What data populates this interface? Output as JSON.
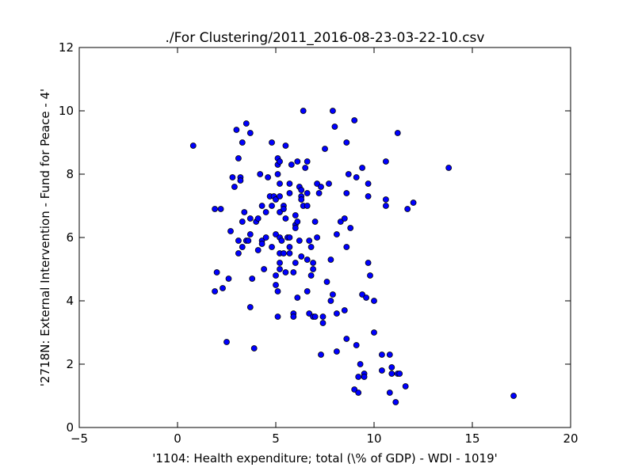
{
  "chart_data": {
    "type": "scatter",
    "title": "./For Clustering/2011_2016-08-23-03-22-10.csv",
    "xlabel": "'1104: Health expenditure; total  (\\% of GDP) - WDI - 1019'",
    "ylabel": "'2718N: External Intervention - Fund for Peace - 4'",
    "xlim": [
      -5,
      20
    ],
    "ylim": [
      0,
      12
    ],
    "xticks": [
      -5,
      0,
      5,
      10,
      15,
      20
    ],
    "yticks": [
      0,
      2,
      4,
      6,
      8,
      10,
      12
    ],
    "grid": false,
    "marker_color": "#0000ff",
    "marker_edge": "#000000",
    "points": [
      [
        0.8,
        8.9
      ],
      [
        1.9,
        6.9
      ],
      [
        2.2,
        6.9
      ],
      [
        2.0,
        4.9
      ],
      [
        1.9,
        4.3
      ],
      [
        2.3,
        4.4
      ],
      [
        2.6,
        4.7
      ],
      [
        2.5,
        2.7
      ],
      [
        2.7,
        6.2
      ],
      [
        2.8,
        7.9
      ],
      [
        2.9,
        7.6
      ],
      [
        3.0,
        9.4
      ],
      [
        3.1,
        8.5
      ],
      [
        3.2,
        7.9
      ],
      [
        3.2,
        7.8
      ],
      [
        3.1,
        5.9
      ],
      [
        3.1,
        5.5
      ],
      [
        3.3,
        6.5
      ],
      [
        3.3,
        5.7
      ],
      [
        3.4,
        6.8
      ],
      [
        3.3,
        9.0
      ],
      [
        3.5,
        9.6
      ],
      [
        3.5,
        5.9
      ],
      [
        3.6,
        5.9
      ],
      [
        3.7,
        9.3
      ],
      [
        3.7,
        6.6
      ],
      [
        3.7,
        6.1
      ],
      [
        3.7,
        3.8
      ],
      [
        3.8,
        4.7
      ],
      [
        3.9,
        2.5
      ],
      [
        4.0,
        6.5
      ],
      [
        4.1,
        6.6
      ],
      [
        4.1,
        5.6
      ],
      [
        4.2,
        8.0
      ],
      [
        4.3,
        7.0
      ],
      [
        4.3,
        5.9
      ],
      [
        4.3,
        5.8
      ],
      [
        4.4,
        5.0
      ],
      [
        4.5,
        6.8
      ],
      [
        4.5,
        6.0
      ],
      [
        4.6,
        7.9
      ],
      [
        4.7,
        7.3
      ],
      [
        4.8,
        9.0
      ],
      [
        4.8,
        7.0
      ],
      [
        4.8,
        5.7
      ],
      [
        4.9,
        7.3
      ],
      [
        5.0,
        7.2
      ],
      [
        5.0,
        6.1
      ],
      [
        5.0,
        4.8
      ],
      [
        5.0,
        4.5
      ],
      [
        5.1,
        4.3
      ],
      [
        5.1,
        3.5
      ],
      [
        5.1,
        8.5
      ],
      [
        5.1,
        8.3
      ],
      [
        5.1,
        8.0
      ],
      [
        5.2,
        8.4
      ],
      [
        5.2,
        7.7
      ],
      [
        5.2,
        7.3
      ],
      [
        5.2,
        6.8
      ],
      [
        5.2,
        6.0
      ],
      [
        5.2,
        5.5
      ],
      [
        5.2,
        5.2
      ],
      [
        5.2,
        5.0
      ],
      [
        5.3,
        5.9
      ],
      [
        5.4,
        7.0
      ],
      [
        5.4,
        6.9
      ],
      [
        5.4,
        5.5
      ],
      [
        5.5,
        8.9
      ],
      [
        5.5,
        6.6
      ],
      [
        5.5,
        4.9
      ],
      [
        5.6,
        6.0
      ],
      [
        5.7,
        7.7
      ],
      [
        5.7,
        7.4
      ],
      [
        5.7,
        6.0
      ],
      [
        5.7,
        5.7
      ],
      [
        5.7,
        5.5
      ],
      [
        5.8,
        8.3
      ],
      [
        5.9,
        3.6
      ],
      [
        5.9,
        3.5
      ],
      [
        5.9,
        4.9
      ],
      [
        6.0,
        6.7
      ],
      [
        6.0,
        6.4
      ],
      [
        6.0,
        6.3
      ],
      [
        6.0,
        5.2
      ],
      [
        6.1,
        8.4
      ],
      [
        6.1,
        4.1
      ],
      [
        6.1,
        6.5
      ],
      [
        6.2,
        7.6
      ],
      [
        6.2,
        5.9
      ],
      [
        6.3,
        7.5
      ],
      [
        6.3,
        7.3
      ],
      [
        6.3,
        7.2
      ],
      [
        6.3,
        5.4
      ],
      [
        6.4,
        10.0
      ],
      [
        6.4,
        7.0
      ],
      [
        6.5,
        8.2
      ],
      [
        6.6,
        8.4
      ],
      [
        6.6,
        7.4
      ],
      [
        6.6,
        7.0
      ],
      [
        6.6,
        5.3
      ],
      [
        6.6,
        4.3
      ],
      [
        6.7,
        3.6
      ],
      [
        6.7,
        5.9
      ],
      [
        6.8,
        5.7
      ],
      [
        6.8,
        4.8
      ],
      [
        6.9,
        5.2
      ],
      [
        6.9,
        5.0
      ],
      [
        6.9,
        3.5
      ],
      [
        7.0,
        6.5
      ],
      [
        7.0,
        3.5
      ],
      [
        7.1,
        6.0
      ],
      [
        7.1,
        7.7
      ],
      [
        7.2,
        7.4
      ],
      [
        7.3,
        7.6
      ],
      [
        7.3,
        2.3
      ],
      [
        7.4,
        3.5
      ],
      [
        7.4,
        3.3
      ],
      [
        7.5,
        8.8
      ],
      [
        7.6,
        4.6
      ],
      [
        7.7,
        7.7
      ],
      [
        7.8,
        5.3
      ],
      [
        7.8,
        4.0
      ],
      [
        7.9,
        10.0
      ],
      [
        7.9,
        4.2
      ],
      [
        8.0,
        9.5
      ],
      [
        8.1,
        6.1
      ],
      [
        8.1,
        3.6
      ],
      [
        8.1,
        2.4
      ],
      [
        8.3,
        6.5
      ],
      [
        8.5,
        6.6
      ],
      [
        8.5,
        3.7
      ],
      [
        8.6,
        9.0
      ],
      [
        8.6,
        7.4
      ],
      [
        8.6,
        5.7
      ],
      [
        8.6,
        2.8
      ],
      [
        8.7,
        8.0
      ],
      [
        8.8,
        6.3
      ],
      [
        9.0,
        9.7
      ],
      [
        9.0,
        1.2
      ],
      [
        9.1,
        7.9
      ],
      [
        9.1,
        2.6
      ],
      [
        9.2,
        1.6
      ],
      [
        9.2,
        1.1
      ],
      [
        9.3,
        2.0
      ],
      [
        9.4,
        8.2
      ],
      [
        9.4,
        4.2
      ],
      [
        9.5,
        1.7
      ],
      [
        9.5,
        1.6
      ],
      [
        9.6,
        4.1
      ],
      [
        9.7,
        7.7
      ],
      [
        9.7,
        7.3
      ],
      [
        9.7,
        5.2
      ],
      [
        9.8,
        4.8
      ],
      [
        10.0,
        4.0
      ],
      [
        10.0,
        3.0
      ],
      [
        10.4,
        2.3
      ],
      [
        10.4,
        1.8
      ],
      [
        10.6,
        8.4
      ],
      [
        10.6,
        7.2
      ],
      [
        10.6,
        7.0
      ],
      [
        10.8,
        2.3
      ],
      [
        10.8,
        1.1
      ],
      [
        10.9,
        1.9
      ],
      [
        10.9,
        1.7
      ],
      [
        11.1,
        0.8
      ],
      [
        11.2,
        9.3
      ],
      [
        11.2,
        1.7
      ],
      [
        11.3,
        1.7
      ],
      [
        11.6,
        1.3
      ],
      [
        11.7,
        6.9
      ],
      [
        12.0,
        7.1
      ],
      [
        13.8,
        8.2
      ],
      [
        17.1,
        1.0
      ]
    ]
  }
}
